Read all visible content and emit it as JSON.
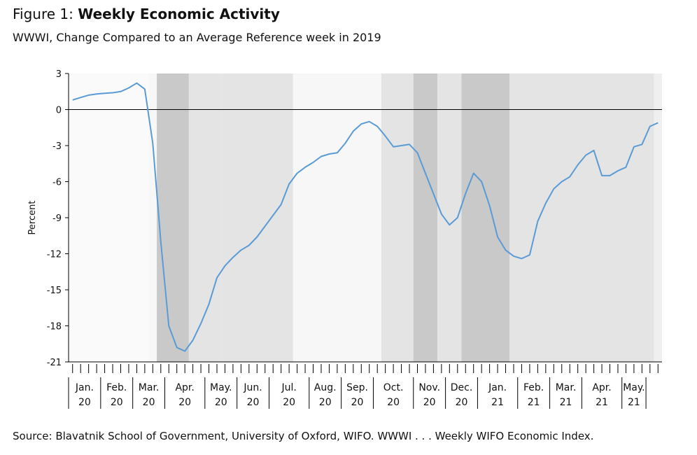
{
  "figure": {
    "prefix": "Figure 1: ",
    "title": "Weekly Economic Activity",
    "subtitle": "WWWI, Change Compared to an Average Reference week in 2019",
    "source": "Source: Blavatnik School of Government, University of Oxford, WIFO. WWWI . . . Weekly WIFO Economic Index."
  },
  "colors": {
    "line": "#5b9bd5",
    "shade_light": "#f7f7f7",
    "shade_mid": "#e4e4e4",
    "shade_dark": "#c9c9c9",
    "shade_pale": "#efefef"
  },
  "chart_data": {
    "type": "line",
    "title": "Weekly Economic Activity",
    "subtitle": "WWWI, Change Compared to an Average Reference week in 2019",
    "ylabel": "Percent",
    "xlabel": "",
    "ylim": [
      -21,
      3
    ],
    "yticks": [
      3,
      0,
      -3,
      -6,
      -9,
      -12,
      -15,
      -18,
      -21
    ],
    "grid": false,
    "legend": "none",
    "x_unit": "week (starting week 1 of January 2020)",
    "month_labels": [
      {
        "month": "Jan.",
        "year": "20"
      },
      {
        "month": "Feb.",
        "year": "20"
      },
      {
        "month": "Mar.",
        "year": "20"
      },
      {
        "month": "Apr.",
        "year": "20"
      },
      {
        "month": "May.",
        "year": "20"
      },
      {
        "month": "Jun.",
        "year": "20"
      },
      {
        "month": "Jul.",
        "year": "20"
      },
      {
        "month": "Aug.",
        "year": "20"
      },
      {
        "month": "Sep.",
        "year": "20"
      },
      {
        "month": "Oct.",
        "year": "20"
      },
      {
        "month": "Nov.",
        "year": "20"
      },
      {
        "month": "Dec.",
        "year": "20"
      },
      {
        "month": "Jan.",
        "year": "21"
      },
      {
        "month": "Feb.",
        "year": "21"
      },
      {
        "month": "Mar.",
        "year": "21"
      },
      {
        "month": "Apr.",
        "year": "21"
      },
      {
        "month": "May.",
        "year": "21"
      }
    ],
    "month_week_counts": [
      4,
      4,
      4,
      5,
      4,
      4,
      5,
      4,
      4,
      5,
      4,
      4,
      5,
      4,
      4,
      5,
      3
    ],
    "shaded_periods": [
      {
        "start_week": 10.5,
        "end_week": 11.5,
        "level": "light"
      },
      {
        "start_week": 11.5,
        "end_week": 15.5,
        "level": "dark"
      },
      {
        "start_week": 15.5,
        "end_week": 19.5,
        "level": "mid"
      },
      {
        "start_week": 19.5,
        "end_week": 28.5,
        "level": "mid"
      },
      {
        "start_week": 28.5,
        "end_week": 39.5,
        "level": "light"
      },
      {
        "start_week": 39.5,
        "end_week": 43.5,
        "level": "mid"
      },
      {
        "start_week": 43.5,
        "end_week": 46.5,
        "level": "dark"
      },
      {
        "start_week": 46.5,
        "end_week": 49.5,
        "level": "mid"
      },
      {
        "start_week": 49.5,
        "end_week": 55.5,
        "level": "dark"
      },
      {
        "start_week": 55.5,
        "end_week": 73.5,
        "level": "mid"
      },
      {
        "start_week": 73.5,
        "end_week": 75.5,
        "level": "pale"
      }
    ],
    "series": [
      {
        "values": [
          0.8,
          1.0,
          1.2,
          1.3,
          1.35,
          1.4,
          1.5,
          1.8,
          2.2,
          1.7,
          -2.8,
          -11.0,
          -18.0,
          -19.8,
          -20.1,
          -19.2,
          -17.8,
          -16.2,
          -14.0,
          -13.0,
          -12.3,
          -11.7,
          -11.3,
          -10.6,
          -9.7,
          -8.8,
          -7.9,
          -6.2,
          -5.3,
          -4.8,
          -4.4,
          -3.9,
          -3.7,
          -3.6,
          -2.8,
          -1.8,
          -1.2,
          -1.0,
          -1.4,
          -2.2,
          -3.1,
          -3.0,
          -2.9,
          -3.6,
          -5.3,
          -7.0,
          -8.7,
          -9.6,
          -9.0,
          -7.0,
          -5.3,
          -6.0,
          -8.0,
          -10.6,
          -11.7,
          -12.2,
          -12.4,
          -12.1,
          -9.3,
          -7.8,
          -6.6,
          -6.0,
          -5.6,
          -4.6,
          -3.8,
          -3.4,
          -5.5,
          -5.5,
          -5.1,
          -4.8,
          -3.1,
          -2.9,
          -1.4,
          -1.1
        ]
      }
    ]
  }
}
